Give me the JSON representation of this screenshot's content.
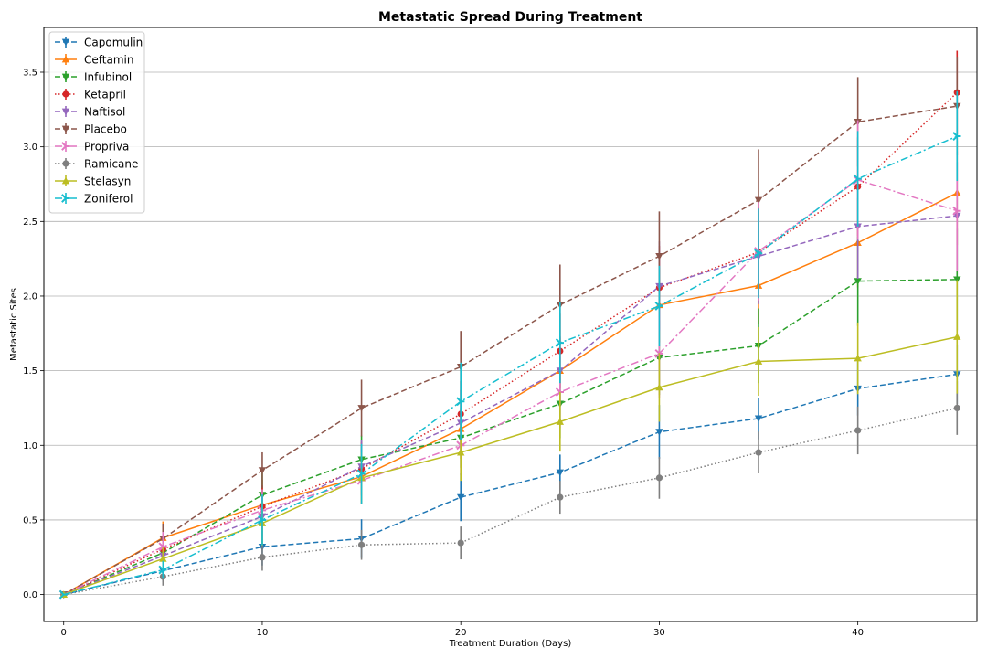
{
  "chart_data": {
    "type": "line",
    "title": "Metastatic Spread During Treatment",
    "xlabel": "Treatment Duration (Days)",
    "ylabel": "Metastatic Sites",
    "xlim": [
      -1,
      46
    ],
    "ylim": [
      -0.18,
      3.8
    ],
    "xticks": [
      0,
      10,
      20,
      30,
      40
    ],
    "yticks": [
      0.0,
      0.5,
      1.0,
      1.5,
      2.0,
      2.5,
      3.0,
      3.5
    ],
    "ytick_labels": [
      "0.0",
      "0.5",
      "1.0",
      "1.5",
      "2.0",
      "2.5",
      "3.0",
      "3.5"
    ],
    "grid": "y",
    "legend_position": "top-left",
    "x": [
      0,
      5,
      10,
      15,
      20,
      25,
      30,
      35,
      40,
      45
    ],
    "series": [
      {
        "name": "Capomulin",
        "color": "#1f77b4",
        "dash": "dashed",
        "marker": "triangle-down",
        "values": [
          0.0,
          0.16,
          0.32,
          0.375,
          0.652,
          0.818,
          1.09,
          1.18,
          1.38,
          1.476
        ],
        "errors": [
          0.0,
          0.075,
          0.125,
          0.13,
          0.16,
          0.12,
          0.18,
          0.14,
          0.18,
          0.2
        ]
      },
      {
        "name": "Ceftamin",
        "color": "#ff7f0e",
        "dash": "solid",
        "marker": "triangle-up",
        "values": [
          0.0,
          0.38,
          0.6,
          0.79,
          1.11,
          1.5,
          1.94,
          2.07,
          2.357,
          2.692
        ],
        "errors": [
          0.0,
          0.11,
          0.17,
          0.18,
          0.2,
          0.22,
          0.25,
          0.26,
          0.3,
          0.35
        ]
      },
      {
        "name": "Infubinol",
        "color": "#2ca02c",
        "dash": "dashed",
        "marker": "triangle-down",
        "values": [
          0.0,
          0.28,
          0.667,
          0.905,
          1.05,
          1.278,
          1.588,
          1.667,
          2.1,
          2.111
        ],
        "errors": [
          0.0,
          0.09,
          0.15,
          0.16,
          0.2,
          0.23,
          0.25,
          0.25,
          0.3,
          0.34
        ]
      },
      {
        "name": "Ketapril",
        "color": "#d62728",
        "dash": "dotted",
        "marker": "circle",
        "values": [
          0.0,
          0.304,
          0.591,
          0.842,
          1.21,
          1.632,
          2.056,
          2.294,
          2.733,
          3.364
        ],
        "errors": [
          0.0,
          0.1,
          0.14,
          0.18,
          0.22,
          0.25,
          0.28,
          0.3,
          0.33,
          0.28
        ]
      },
      {
        "name": "Naftisol",
        "color": "#9467bd",
        "dash": "dashed",
        "marker": "triangle-down",
        "values": [
          0.0,
          0.26,
          0.524,
          0.857,
          1.15,
          1.5,
          2.066,
          2.266,
          2.466,
          2.538
        ],
        "errors": [
          0.0,
          0.09,
          0.16,
          0.18,
          0.22,
          0.23,
          0.3,
          0.32,
          0.35,
          0.36
        ]
      },
      {
        "name": "Placebo",
        "color": "#8c564b",
        "dash": "dashed",
        "marker": "triangle-down",
        "values": [
          0.0,
          0.375,
          0.833,
          1.25,
          1.526,
          1.941,
          2.267,
          2.643,
          3.167,
          3.273
        ],
        "errors": [
          0.0,
          0.1,
          0.12,
          0.19,
          0.24,
          0.27,
          0.3,
          0.34,
          0.3,
          0.33
        ]
      },
      {
        "name": "Propriva",
        "color": "#e377c2",
        "dash": "dashdot",
        "marker": "tri-right",
        "values": [
          0.0,
          0.32,
          0.565,
          0.765,
          1.0,
          1.357,
          1.615,
          2.3,
          2.778,
          2.571
        ],
        "errors": [
          0.0,
          0.1,
          0.14,
          0.16,
          0.2,
          0.24,
          0.3,
          0.33,
          0.4,
          0.4
        ]
      },
      {
        "name": "Ramicane",
        "color": "#7f7f7f",
        "dash": "dotted",
        "marker": "circle",
        "values": [
          0.0,
          0.12,
          0.25,
          0.333,
          0.346,
          0.652,
          0.782,
          0.952,
          1.1,
          1.25
        ],
        "errors": [
          0.0,
          0.06,
          0.09,
          0.1,
          0.11,
          0.11,
          0.14,
          0.14,
          0.16,
          0.18
        ]
      },
      {
        "name": "Stelasyn",
        "color": "#bcbd22",
        "dash": "solid",
        "marker": "triangle-up",
        "values": [
          0.0,
          0.24,
          0.478,
          0.782,
          0.952,
          1.158,
          1.388,
          1.562,
          1.583,
          1.727
        ],
        "errors": [
          0.0,
          0.08,
          0.15,
          0.17,
          0.19,
          0.2,
          0.23,
          0.23,
          0.24,
          0.38
        ]
      },
      {
        "name": "Zoniferol",
        "color": "#17becf",
        "dash": "dashdot",
        "marker": "tri-right",
        "values": [
          0.0,
          0.166,
          0.5,
          0.809,
          1.294,
          1.687,
          1.933,
          2.286,
          2.786,
          3.071
        ],
        "errors": [
          0.0,
          0.06,
          0.17,
          0.2,
          0.26,
          0.27,
          0.27,
          0.3,
          0.32,
          0.3
        ]
      }
    ]
  }
}
